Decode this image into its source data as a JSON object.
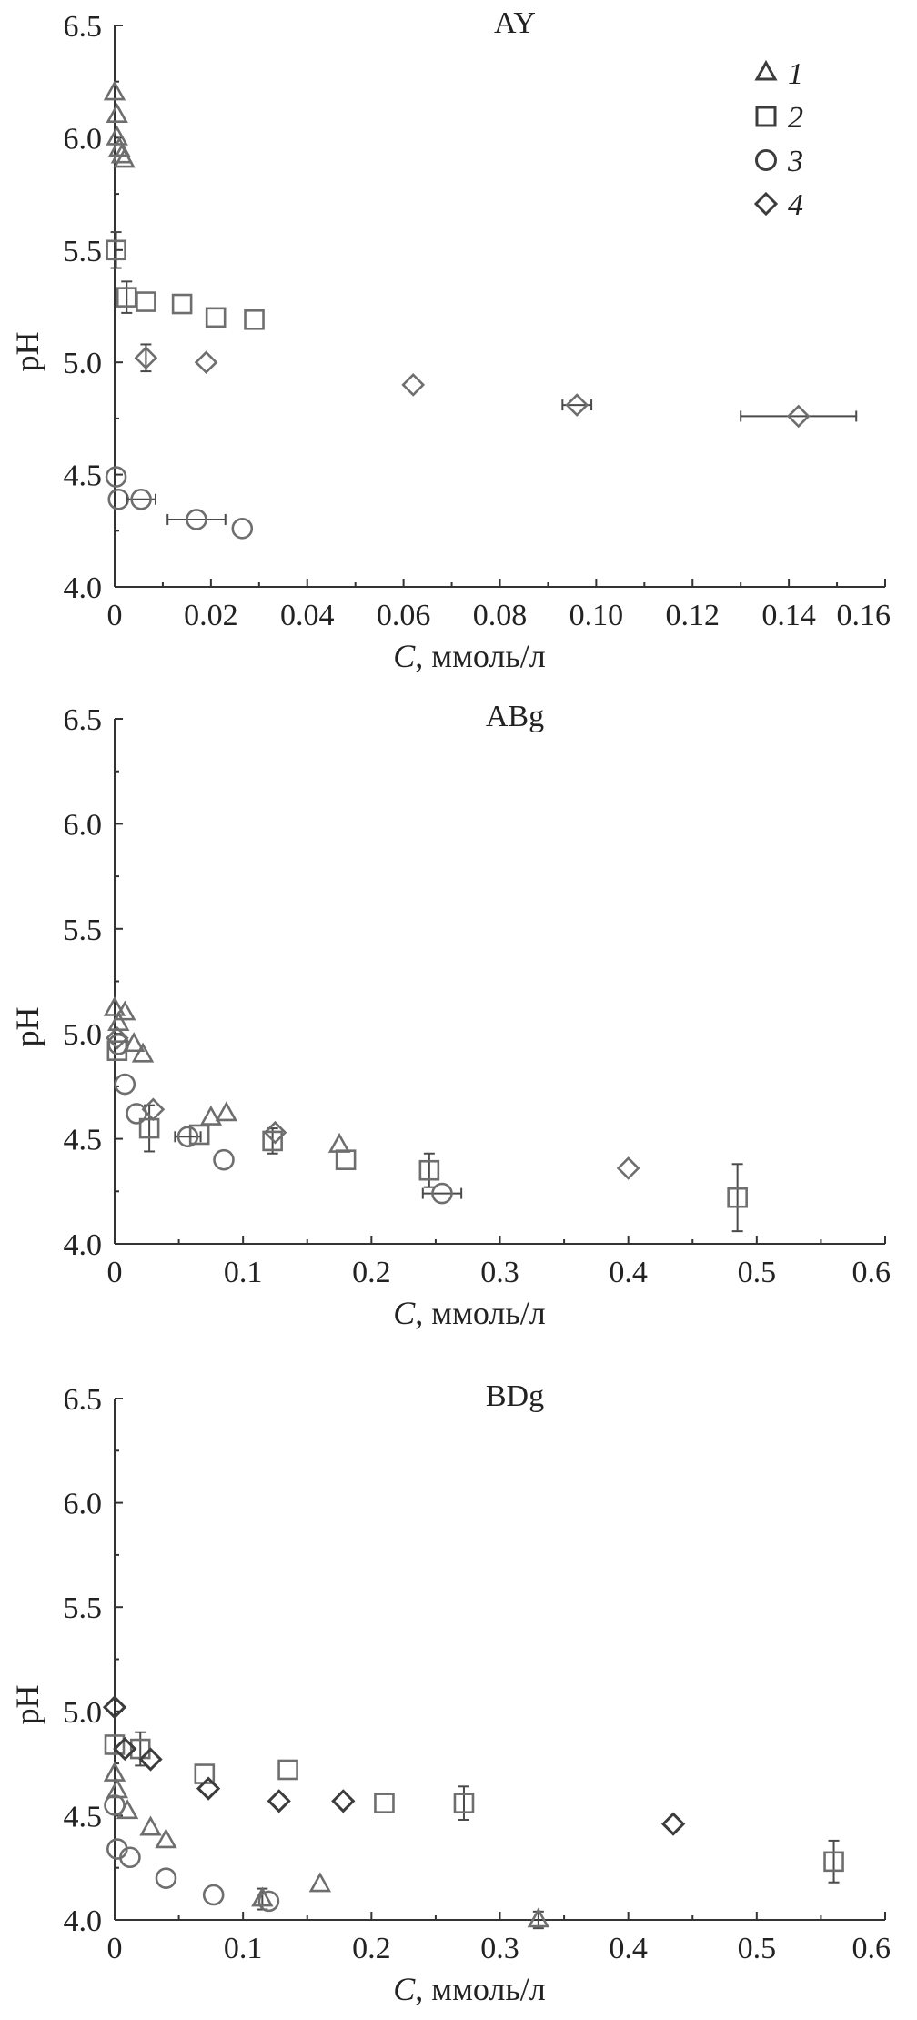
{
  "chart_data": [
    {
      "type": "scatter",
      "title": "AY",
      "xlabel_italic": "C",
      "xlabel_rest": ", ммоль/л",
      "ylabel": "pH",
      "xlim": [
        0,
        0.16
      ],
      "ylim": [
        4.0,
        6.5
      ],
      "x_ticks": [
        "0",
        "0.02",
        "0.04",
        "0.06",
        "0.08",
        "0.10",
        "0.12",
        "0.14",
        "0.16"
      ],
      "y_ticks": [
        "4.0",
        "4.5",
        "5.0",
        "5.5",
        "6.0",
        "6.5"
      ],
      "legend": {
        "position": "top-right",
        "entries": [
          {
            "marker": "triangle",
            "label": "1"
          },
          {
            "marker": "square",
            "label": "2"
          },
          {
            "marker": "circle",
            "label": "3"
          },
          {
            "marker": "diamond",
            "label": "4"
          }
        ]
      },
      "series": [
        {
          "marker": "triangle",
          "points": [
            {
              "x": 0.0,
              "y": 6.2
            },
            {
              "x": 0.0005,
              "y": 6.1
            },
            {
              "x": 0.0005,
              "y": 6.0
            },
            {
              "x": 0.001,
              "y": 5.95
            },
            {
              "x": 0.0015,
              "y": 5.92
            },
            {
              "x": 0.002,
              "y": 5.9
            }
          ]
        },
        {
          "marker": "square",
          "points": [
            {
              "x": 0.0003,
              "y": 5.5,
              "yerr": 0.08
            },
            {
              "x": 0.0025,
              "y": 5.29,
              "yerr": 0.07
            },
            {
              "x": 0.0065,
              "y": 5.27
            },
            {
              "x": 0.014,
              "y": 5.26
            },
            {
              "x": 0.021,
              "y": 5.2
            },
            {
              "x": 0.029,
              "y": 5.19
            }
          ]
        },
        {
          "marker": "circle",
          "points": [
            {
              "x": 0.0003,
              "y": 4.49
            },
            {
              "x": 0.0008,
              "y": 4.39
            },
            {
              "x": 0.0055,
              "y": 4.39,
              "xerr": 0.003
            },
            {
              "x": 0.017,
              "y": 4.3,
              "xerr": 0.006
            },
            {
              "x": 0.0265,
              "y": 4.26
            }
          ]
        },
        {
          "marker": "diamond",
          "points": [
            {
              "x": 0.0065,
              "y": 5.02,
              "yerr": 0.06
            },
            {
              "x": 0.019,
              "y": 5.0
            },
            {
              "x": 0.062,
              "y": 4.9
            },
            {
              "x": 0.096,
              "y": 4.81,
              "xerr": 0.003
            },
            {
              "x": 0.142,
              "y": 4.76,
              "xerr": 0.012
            }
          ]
        }
      ]
    },
    {
      "type": "scatter",
      "title": "ABg",
      "xlabel_italic": "C",
      "xlabel_rest": ", ммоль/л",
      "ylabel": "pH",
      "xlim": [
        0,
        0.6
      ],
      "ylim": [
        4.0,
        6.5
      ],
      "x_ticks": [
        "0",
        "0.1",
        "0.2",
        "0.3",
        "0.4",
        "0.5",
        "0.6"
      ],
      "y_ticks": [
        "4.0",
        "4.5",
        "5.0",
        "5.5",
        "6.0",
        "6.5"
      ],
      "series": [
        {
          "marker": "triangle",
          "points": [
            {
              "x": 0.0,
              "y": 5.12
            },
            {
              "x": 0.003,
              "y": 5.05
            },
            {
              "x": 0.008,
              "y": 5.1
            },
            {
              "x": 0.015,
              "y": 4.95
            },
            {
              "x": 0.022,
              "y": 4.9
            },
            {
              "x": 0.075,
              "y": 4.6
            },
            {
              "x": 0.087,
              "y": 4.62
            },
            {
              "x": 0.175,
              "y": 4.47
            }
          ]
        },
        {
          "marker": "square",
          "points": [
            {
              "x": 0.002,
              "y": 4.92
            },
            {
              "x": 0.027,
              "y": 4.55,
              "yerr": 0.11
            },
            {
              "x": 0.066,
              "y": 4.52
            },
            {
              "x": 0.123,
              "y": 4.49,
              "yerr": 0.06
            },
            {
              "x": 0.18,
              "y": 4.4
            },
            {
              "x": 0.245,
              "y": 4.35,
              "yerr": 0.08
            },
            {
              "x": 0.485,
              "y": 4.22,
              "yerr": 0.16
            }
          ]
        },
        {
          "marker": "circle",
          "points": [
            {
              "x": 0.003,
              "y": 4.95
            },
            {
              "x": 0.008,
              "y": 4.76
            },
            {
              "x": 0.017,
              "y": 4.62
            },
            {
              "x": 0.057,
              "y": 4.51,
              "xerr": 0.01
            },
            {
              "x": 0.085,
              "y": 4.4
            },
            {
              "x": 0.255,
              "y": 4.24,
              "xerr": 0.015
            }
          ]
        },
        {
          "marker": "diamond",
          "points": [
            {
              "x": 0.002,
              "y": 4.98
            },
            {
              "x": 0.03,
              "y": 4.64
            },
            {
              "x": 0.125,
              "y": 4.53
            },
            {
              "x": 0.4,
              "y": 4.36
            }
          ]
        }
      ]
    },
    {
      "type": "scatter",
      "title": "BDg",
      "xlabel_italic": "C",
      "xlabel_rest": ", ммоль/л",
      "ylabel": "pH",
      "xlim": [
        0,
        0.6
      ],
      "ylim": [
        4.0,
        6.5
      ],
      "x_ticks": [
        "0",
        "0.1",
        "0.2",
        "0.3",
        "0.4",
        "0.5",
        "0.6"
      ],
      "y_ticks": [
        "4.0",
        "4.5",
        "5.0",
        "5.5",
        "6.0",
        "6.5"
      ],
      "series": [
        {
          "marker": "triangle",
          "points": [
            {
              "x": 0.0,
              "y": 4.7
            },
            {
              "x": 0.002,
              "y": 4.62
            },
            {
              "x": 0.01,
              "y": 4.52
            },
            {
              "x": 0.028,
              "y": 4.44
            },
            {
              "x": 0.04,
              "y": 4.38
            },
            {
              "x": 0.115,
              "y": 4.1,
              "yerr": 0.05
            },
            {
              "x": 0.16,
              "y": 4.17
            },
            {
              "x": 0.33,
              "y": 4.0,
              "yerr": 0.04
            }
          ]
        },
        {
          "marker": "square",
          "points": [
            {
              "x": 0.0,
              "y": 4.84
            },
            {
              "x": 0.02,
              "y": 4.82,
              "yerr": 0.08
            },
            {
              "x": 0.07,
              "y": 4.7
            },
            {
              "x": 0.135,
              "y": 4.72
            },
            {
              "x": 0.21,
              "y": 4.56
            },
            {
              "x": 0.272,
              "y": 4.56,
              "yerr": 0.08
            },
            {
              "x": 0.56,
              "y": 4.28,
              "yerr": 0.1
            }
          ]
        },
        {
          "marker": "circle",
          "points": [
            {
              "x": 0.0,
              "y": 4.55
            },
            {
              "x": 0.002,
              "y": 4.34
            },
            {
              "x": 0.012,
              "y": 4.3
            },
            {
              "x": 0.04,
              "y": 4.2
            },
            {
              "x": 0.077,
              "y": 4.12
            },
            {
              "x": 0.12,
              "y": 4.09
            }
          ]
        },
        {
          "marker": "diamond",
          "points": [
            {
              "x": 0.0,
              "y": 5.02
            },
            {
              "x": 0.008,
              "y": 4.82
            },
            {
              "x": 0.028,
              "y": 4.77
            },
            {
              "x": 0.073,
              "y": 4.63
            },
            {
              "x": 0.128,
              "y": 4.57
            },
            {
              "x": 0.178,
              "y": 4.57
            },
            {
              "x": 0.435,
              "y": 4.46
            }
          ]
        }
      ]
    }
  ]
}
